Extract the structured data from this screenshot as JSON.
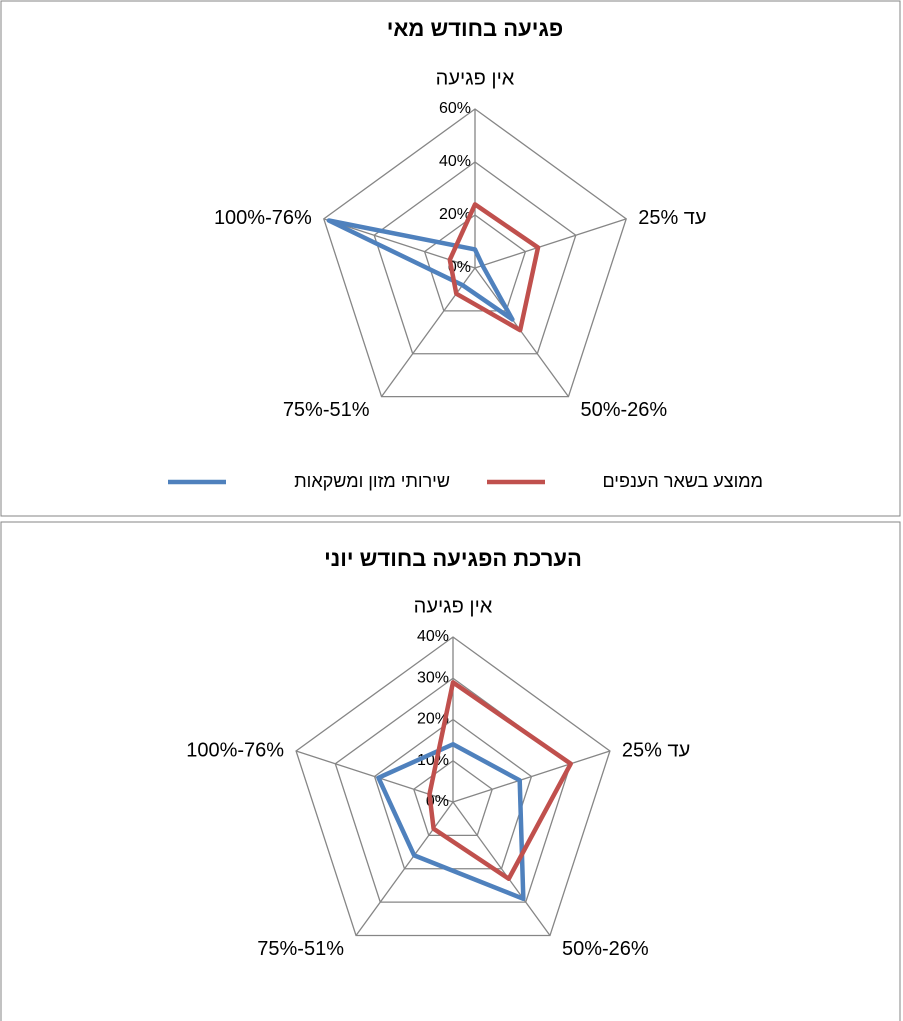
{
  "chart_data": [
    {
      "type": "radar",
      "title": "פגיעה בחודש מאי",
      "categories": [
        "אין פגיעה",
        "עד 25%",
        "50%-26%",
        "75%-51%",
        "100%-76%"
      ],
      "series": [
        {
          "name": "שירותי מזון ומשקאות",
          "color": "#4f81bd",
          "values": [
            7,
            3,
            24,
            8,
            58
          ]
        },
        {
          "name": "ממוצע בשאר הענפים",
          "color": "#c0504d",
          "values": [
            24,
            25,
            29,
            12,
            10
          ]
        }
      ],
      "ylim": [
        0,
        60
      ],
      "yticks": [
        {
          "value": 0,
          "label": "0%"
        },
        {
          "value": 20,
          "label": "20%"
        },
        {
          "value": 40,
          "label": "40%"
        },
        {
          "value": 60,
          "label": "60%"
        }
      ],
      "grid": true,
      "legend": "bottom"
    },
    {
      "type": "radar",
      "title": "הערכת הפגיעה בחודש יוני",
      "categories": [
        "אין פגיעה",
        "עד 25%",
        "50%-26%",
        "75%-51%",
        "100%-76%"
      ],
      "series": [
        {
          "color": "#4f81bd",
          "values": [
            14,
            17,
            29,
            16,
            19
          ]
        },
        {
          "color": "#c0504d",
          "values": [
            29,
            30,
            23,
            8,
            6
          ]
        }
      ],
      "ylim": [
        0,
        40
      ],
      "yticks": [
        {
          "value": 0,
          "label": "0%"
        },
        {
          "value": 10,
          "label": "10%"
        },
        {
          "value": 20,
          "label": "20%"
        },
        {
          "value": 30,
          "label": "30%"
        },
        {
          "value": 40,
          "label": "40%"
        }
      ],
      "grid": true
    }
  ]
}
